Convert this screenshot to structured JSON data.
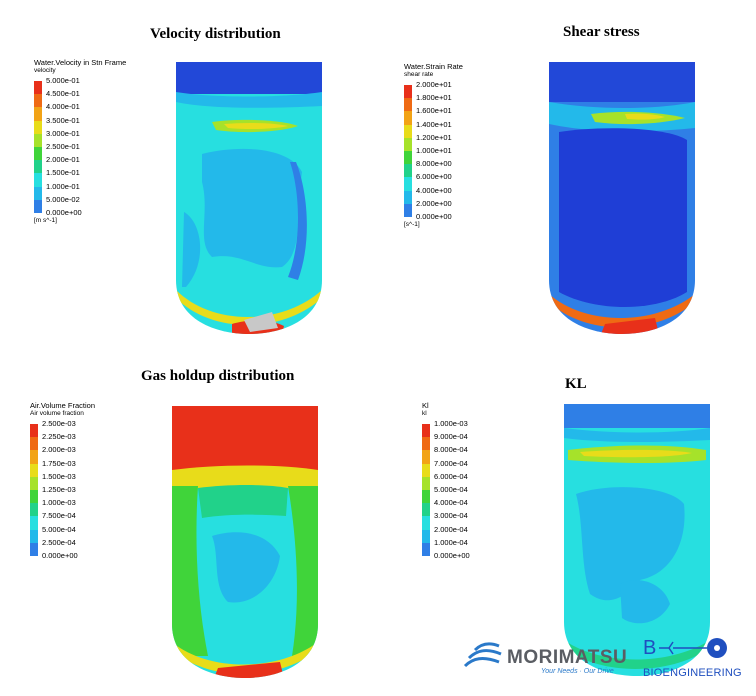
{
  "panels": [
    {
      "id": "velocity",
      "title": "Velocity distribution",
      "legend_title": "Water.Velocity in Stn Frame",
      "legend_subtitle": "velocity",
      "unit": "[m s^-1]",
      "ticks": [
        "5.000e-01",
        "4.500e-01",
        "4.000e-01",
        "3.500e-01",
        "3.000e-01",
        "2.500e-01",
        "2.000e-01",
        "1.500e-01",
        "1.000e-01",
        "5.000e-02",
        "0.000e+00"
      ]
    },
    {
      "id": "shear",
      "title": "Shear stress",
      "legend_title": "Water.Strain Rate",
      "legend_subtitle": "shear rate",
      "unit": "[s^-1]",
      "ticks": [
        "2.000e+01",
        "1.800e+01",
        "1.600e+01",
        "1.400e+01",
        "1.200e+01",
        "1.000e+01",
        "8.000e+00",
        "6.000e+00",
        "4.000e+00",
        "2.000e+00",
        "0.000e+00"
      ]
    },
    {
      "id": "gas",
      "title": "Gas holdup distribution",
      "legend_title": "Air.Volume Fraction",
      "legend_subtitle": "Air volume fraction",
      "unit": "",
      "ticks": [
        "2.500e-03",
        "2.250e-03",
        "2.000e-03",
        "1.750e-03",
        "1.500e-03",
        "1.250e-03",
        "1.000e-03",
        "7.500e-04",
        "5.000e-04",
        "2.500e-04",
        "0.000e+00"
      ]
    },
    {
      "id": "kl",
      "title": "KL",
      "legend_title": "Kl",
      "legend_subtitle": "kl",
      "unit": "",
      "ticks": [
        "1.000e-03",
        "9.000e-04",
        "8.000e-04",
        "7.000e-04",
        "6.000e-04",
        "5.000e-04",
        "4.000e-04",
        "3.000e-04",
        "2.000e-04",
        "1.000e-04",
        "0.000e+00"
      ]
    }
  ],
  "colormap": [
    "#e8301a",
    "#ef6a14",
    "#f2a316",
    "#e8dc1a",
    "#a6e22a",
    "#40d43a",
    "#21d28a",
    "#27dfe0",
    "#23b9ea",
    "#2f7fe6",
    "#1f3ed6"
  ],
  "logos": {
    "morimatsu_name": "MORIMATSU",
    "morimatsu_tagline": "Your Needs · Our Drive",
    "bio_name": "BIOENGINEERING"
  }
}
